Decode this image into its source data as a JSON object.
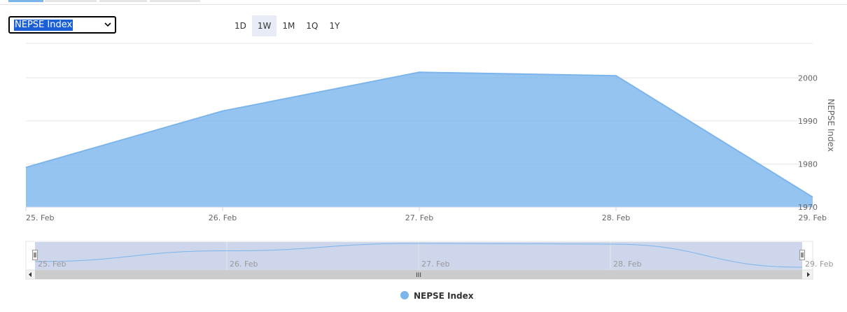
{
  "header": {
    "tabs": [
      {
        "active": true
      },
      {
        "active": false
      },
      {
        "active": false
      },
      {
        "active": false
      }
    ],
    "index_select": {
      "value": "NEPSE Index"
    },
    "range_buttons": [
      {
        "label": "1D",
        "active": false
      },
      {
        "label": "1W",
        "active": true
      },
      {
        "label": "1M",
        "active": false
      },
      {
        "label": "1Q",
        "active": false
      },
      {
        "label": "1Y",
        "active": false
      }
    ]
  },
  "colors": {
    "series": "#7cb5ec",
    "grid": "#e6e6e6",
    "navigator_mask": "#cdd6ea"
  },
  "chart_data": {
    "type": "area",
    "x": [
      "25. Feb",
      "26. Feb",
      "27. Feb",
      "28. Feb",
      "29. Feb"
    ],
    "series": [
      {
        "name": "NEPSE Index",
        "values": [
          1979.2,
          1992.3,
          2001.3,
          2000.5,
          1972.3
        ]
      }
    ],
    "ylabel": "NEPSE Index",
    "yticks": [
      1970,
      1980,
      1990,
      2000
    ],
    "ylim": [
      1970,
      2008
    ],
    "grid": true,
    "legend": "bottom-center",
    "navigator": {
      "labels": [
        "25. Feb",
        "26. Feb",
        "27. Feb",
        "28. Feb",
        "29. Feb"
      ],
      "scrollbar_grip": "III"
    }
  }
}
